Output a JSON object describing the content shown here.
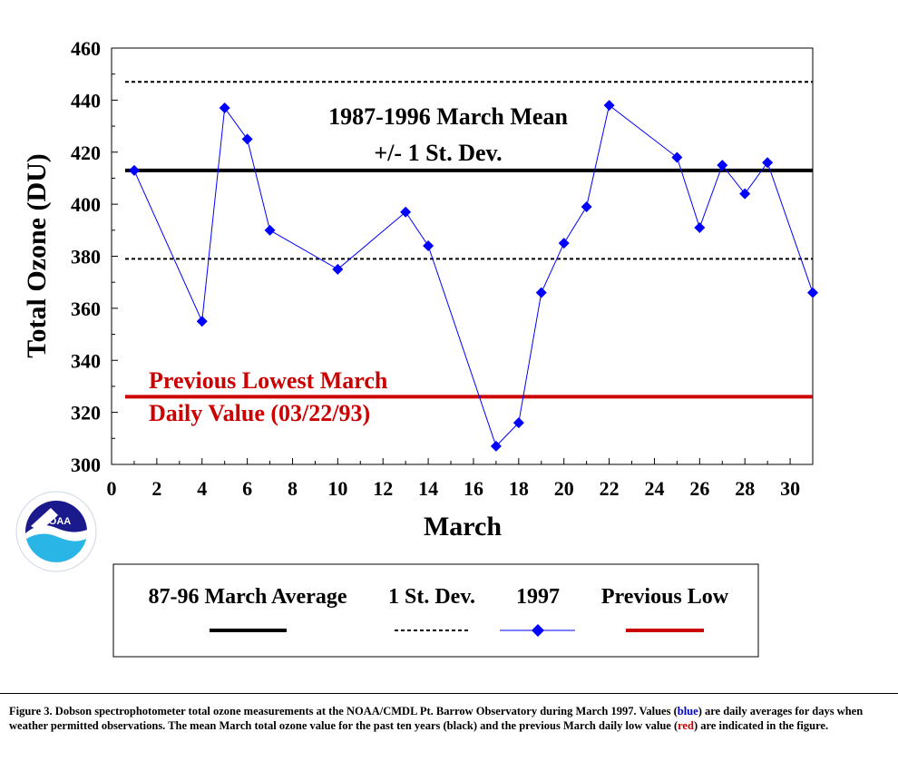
{
  "chart_data": {
    "type": "line",
    "xlabel": "March",
    "ylabel": "Total Ozone (DU)",
    "xlim": [
      0,
      31
    ],
    "ylim": [
      300,
      460
    ],
    "x_ticks": [
      0,
      2,
      4,
      6,
      8,
      10,
      12,
      14,
      16,
      18,
      20,
      22,
      24,
      26,
      28,
      30
    ],
    "y_ticks": [
      300,
      320,
      340,
      360,
      380,
      400,
      420,
      440,
      460
    ],
    "grid": false,
    "series": [
      {
        "name": "1997",
        "color": "#0000ff",
        "marker": "diamond",
        "x": [
          1,
          4,
          5,
          6,
          7,
          10,
          13,
          14,
          17,
          18,
          19,
          20,
          21,
          22,
          25,
          26,
          27,
          28,
          29,
          31
        ],
        "y": [
          413,
          355,
          437,
          425,
          390,
          375,
          397,
          384,
          307,
          316,
          366,
          385,
          399,
          438,
          418,
          391,
          415,
          404,
          416,
          366
        ]
      }
    ],
    "reference_lines": [
      {
        "name": "87-96 March Average",
        "y": 413,
        "style": "solid",
        "color": "#000000"
      },
      {
        "name": "1 St. Dev.",
        "y": 447,
        "style": "dashed",
        "color": "#000000"
      },
      {
        "name": "1 St. Dev.",
        "y": 379,
        "style": "dashed",
        "color": "#000000"
      },
      {
        "name": "Previous Low",
        "y": 326,
        "style": "solid",
        "color": "#cc0000"
      }
    ],
    "annotations": {
      "mean_line1": "1987-1996 March Mean",
      "mean_line2": "+/- 1 St. Dev.",
      "low_line1": "Previous Lowest March",
      "low_line2": "Daily Value (03/22/93)"
    },
    "legend": {
      "placement": "bottom",
      "entries": [
        "87-96 March Average",
        "1 St. Dev.",
        "1997",
        "Previous Low"
      ]
    }
  },
  "logo": {
    "name": "NOAA",
    "icon": "noaa-logo-icon"
  },
  "caption": {
    "part1": "Figure 3. Dobson spectrophotometer total ozone measurements at the NOAA/CMDL Pt. Barrow Observatory during March 1997. Values (",
    "blue_word": "blue",
    "part2": ") are daily averages for days when weather permitted observations. The mean March total ozone value for the past ten years (black) and the previous March daily low value (",
    "red_word": "red",
    "part3": ") are indicated in the figure."
  }
}
